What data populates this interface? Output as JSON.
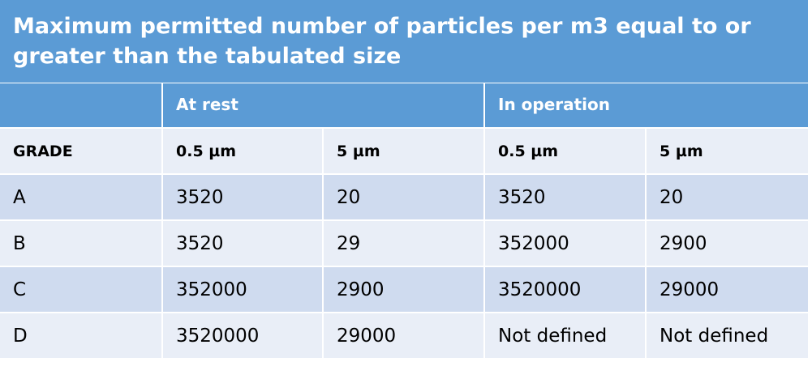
{
  "title": "Maximum permitted number of particles per m3 equal to or greater than the tabulated size",
  "header": {
    "at_rest": "At rest",
    "in_operation": "In operation"
  },
  "columns": [
    "GRADE",
    "0.5 µm",
    "5 µm",
    "0.5 µm",
    "5 µm"
  ],
  "rows": [
    [
      "A",
      3520,
      20,
      3520,
      20
    ],
    [
      "B",
      3520,
      29,
      352000,
      2900
    ],
    [
      "C",
      352000,
      2900,
      3520000,
      29000
    ],
    [
      "D",
      3520000,
      29000,
      "Not defined",
      "Not defined"
    ]
  ]
}
